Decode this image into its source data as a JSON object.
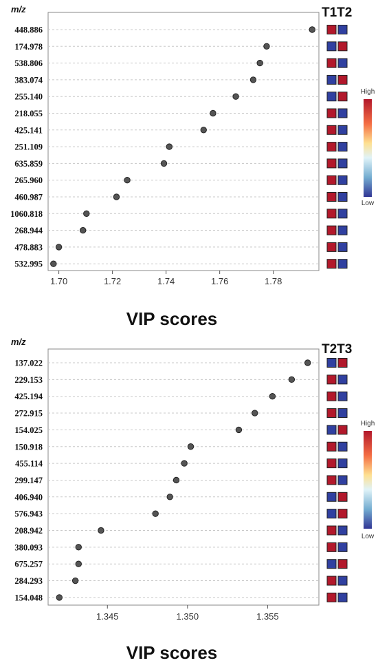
{
  "colors": {
    "high": "#b2182b",
    "low": "#3040a0",
    "point": "#555555"
  },
  "chart_data": [
    {
      "type": "scatter",
      "group_title": "T1T2",
      "ylabel": "m/z",
      "xlabel": "VIP scores",
      "xlim": [
        1.696,
        1.797
      ],
      "xticks": [
        "1.70",
        "1.72",
        "1.74",
        "1.76",
        "1.78"
      ],
      "xtick_values": [
        1.7,
        1.72,
        1.74,
        1.76,
        1.78
      ],
      "grid": "horizontal-dashed",
      "legend": {
        "high": "High",
        "low": "Low",
        "placement": "right"
      },
      "categories": [
        "448.886",
        "174.978",
        "538.806",
        "383.074",
        "255.140",
        "218.055",
        "425.141",
        "251.109",
        "635.859",
        "265.960",
        "460.987",
        "1060.818",
        "268.944",
        "478.883",
        "532.995"
      ],
      "values": [
        1.7945,
        1.7775,
        1.775,
        1.7725,
        1.766,
        1.7575,
        1.754,
        1.7412,
        1.7392,
        1.7255,
        1.7215,
        1.7103,
        1.709,
        1.7,
        1.698
      ],
      "heatmap": [
        [
          "high",
          "low"
        ],
        [
          "low",
          "high"
        ],
        [
          "high",
          "low"
        ],
        [
          "low",
          "high"
        ],
        [
          "low",
          "high"
        ],
        [
          "high",
          "low"
        ],
        [
          "high",
          "low"
        ],
        [
          "high",
          "low"
        ],
        [
          "high",
          "low"
        ],
        [
          "high",
          "low"
        ],
        [
          "high",
          "low"
        ],
        [
          "high",
          "low"
        ],
        [
          "high",
          "low"
        ],
        [
          "high",
          "low"
        ],
        [
          "high",
          "low"
        ]
      ]
    },
    {
      "type": "scatter",
      "group_title": "T2T3",
      "ylabel": "m/z",
      "xlabel": "VIP scores",
      "xlim": [
        1.3413,
        1.3582
      ],
      "xticks": [
        "1.345",
        "1.350",
        "1.355"
      ],
      "xtick_values": [
        1.345,
        1.35,
        1.355
      ],
      "grid": "horizontal-dashed",
      "legend": {
        "high": "High",
        "low": "Low",
        "placement": "right"
      },
      "categories": [
        "137.022",
        "229.153",
        "425.194",
        "272.915",
        "154.025",
        "150.918",
        "455.114",
        "299.147",
        "406.940",
        "576.943",
        "208.942",
        "380.093",
        "675.257",
        "284.293",
        "154.048"
      ],
      "values": [
        1.3575,
        1.3565,
        1.3553,
        1.3542,
        1.3532,
        1.3502,
        1.3498,
        1.3493,
        1.3489,
        1.348,
        1.3446,
        1.3432,
        1.3432,
        1.343,
        1.342
      ],
      "heatmap": [
        [
          "low",
          "high"
        ],
        [
          "high",
          "low"
        ],
        [
          "high",
          "low"
        ],
        [
          "high",
          "low"
        ],
        [
          "low",
          "high"
        ],
        [
          "high",
          "low"
        ],
        [
          "high",
          "low"
        ],
        [
          "high",
          "low"
        ],
        [
          "low",
          "high"
        ],
        [
          "low",
          "high"
        ],
        [
          "high",
          "low"
        ],
        [
          "high",
          "low"
        ],
        [
          "low",
          "high"
        ],
        [
          "high",
          "low"
        ],
        [
          "high",
          "low"
        ]
      ]
    }
  ]
}
